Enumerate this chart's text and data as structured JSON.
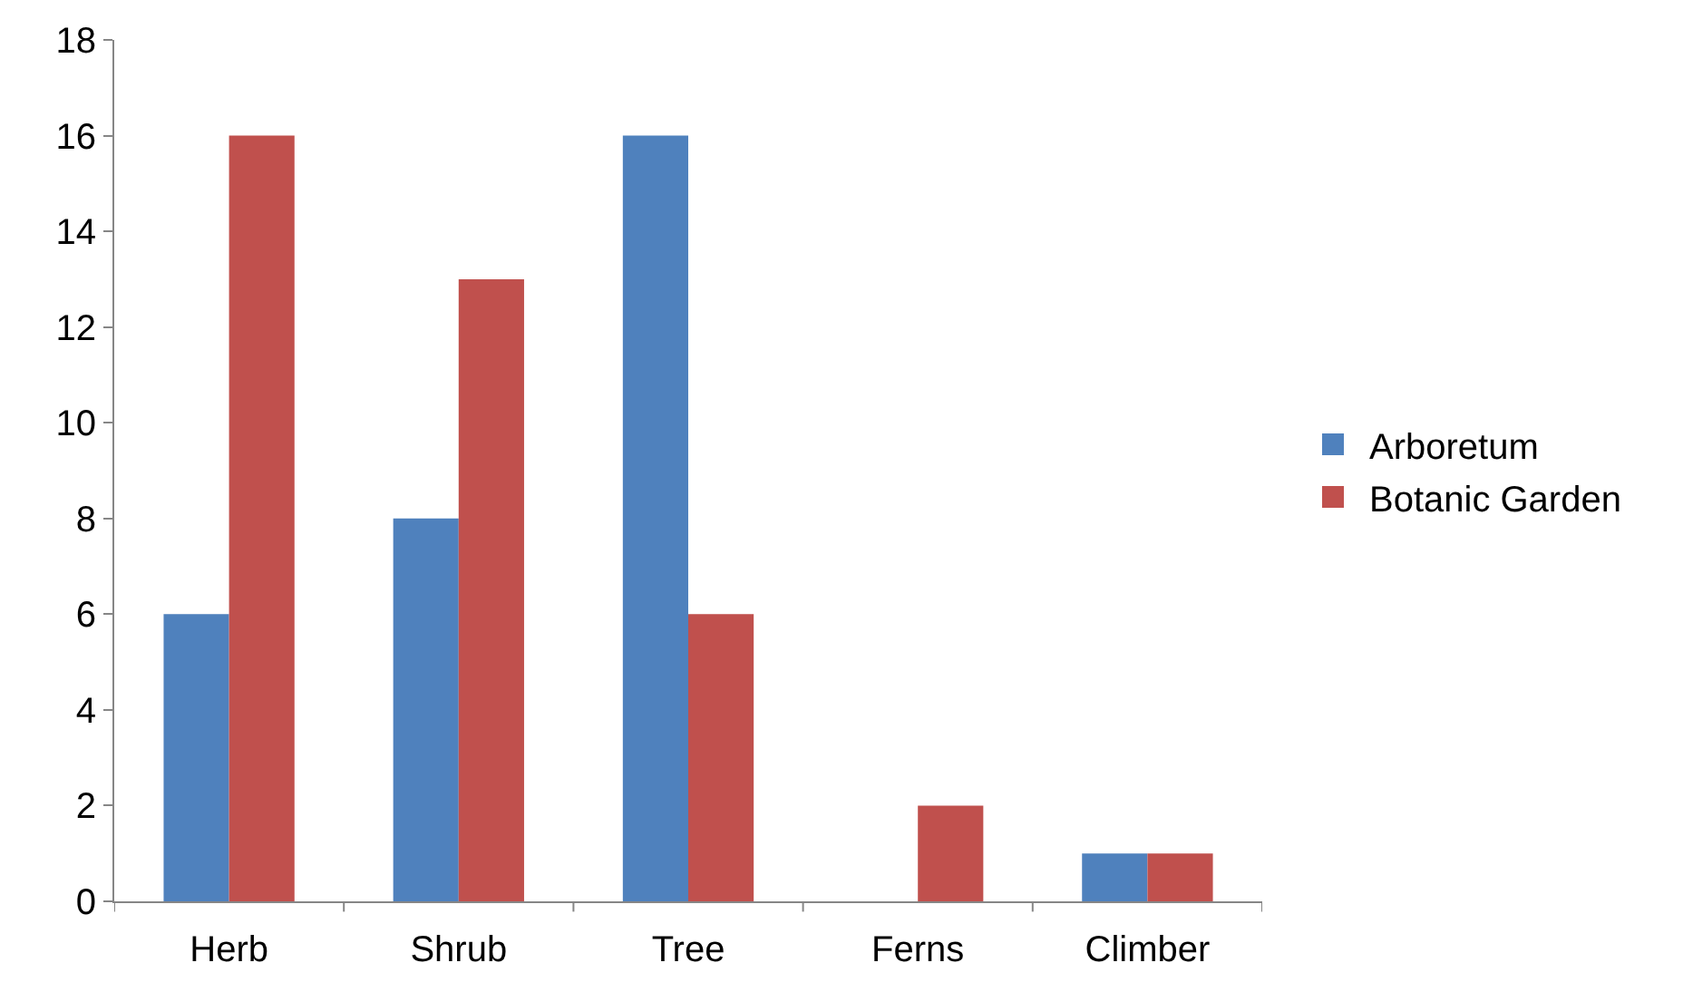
{
  "chart_data": {
    "type": "bar",
    "categories": [
      "Herb",
      "Shrub",
      "Tree",
      "Ferns",
      "Climber"
    ],
    "series": [
      {
        "name": "Arboretum",
        "color": "#4f81bd",
        "values": [
          6,
          8,
          16,
          0,
          1
        ]
      },
      {
        "name": "Botanic Garden",
        "color": "#c0504d",
        "values": [
          16,
          13,
          6,
          2,
          1
        ]
      }
    ],
    "ylim": [
      0,
      18
    ],
    "yticks": [
      0,
      2,
      4,
      6,
      8,
      10,
      12,
      14,
      16,
      18
    ],
    "legend": "right"
  }
}
